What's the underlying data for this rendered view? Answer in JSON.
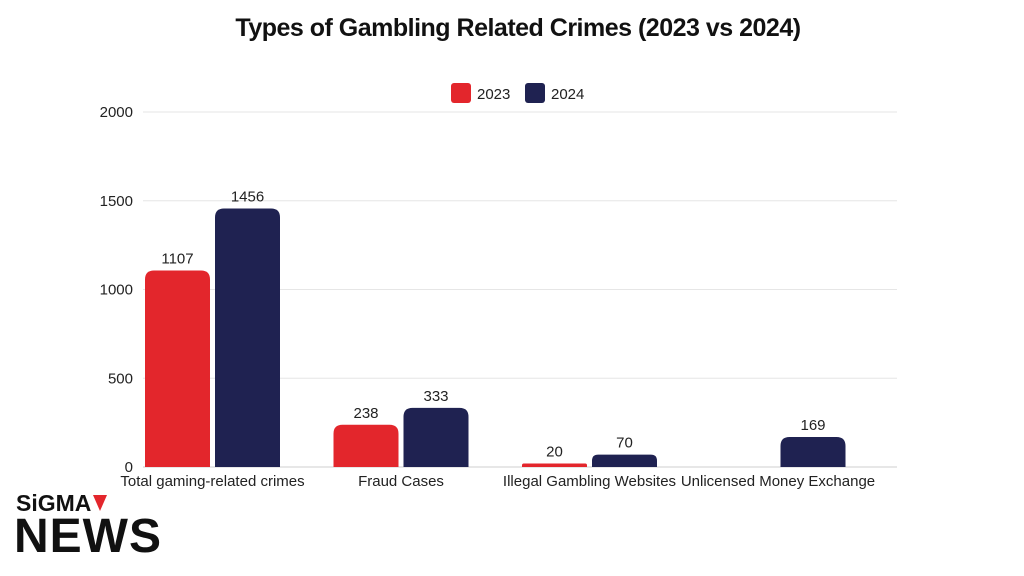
{
  "chart_data": {
    "type": "bar",
    "title": "Types of Gambling Related Crimes (2023 vs 2024)",
    "categories": [
      "Total gaming-related crimes",
      "Fraud Cases",
      "Illegal Gambling Websites",
      "Unlicensed Money Exchange"
    ],
    "series": [
      {
        "name": "2023",
        "values": [
          1107,
          238,
          20,
          null
        ],
        "color": "#e3262c"
      },
      {
        "name": "2024",
        "values": [
          1456,
          333,
          70,
          169
        ],
        "color": "#1f2251"
      }
    ],
    "ylim": [
      0,
      2000
    ],
    "yticks": [
      0,
      500,
      1000,
      1500,
      2000
    ],
    "grid": true,
    "legend": "top-center",
    "xlabel": "",
    "ylabel": ""
  },
  "brand": {
    "top": "SiGMA",
    "main": "NEWS",
    "accent": "#e3262c"
  }
}
